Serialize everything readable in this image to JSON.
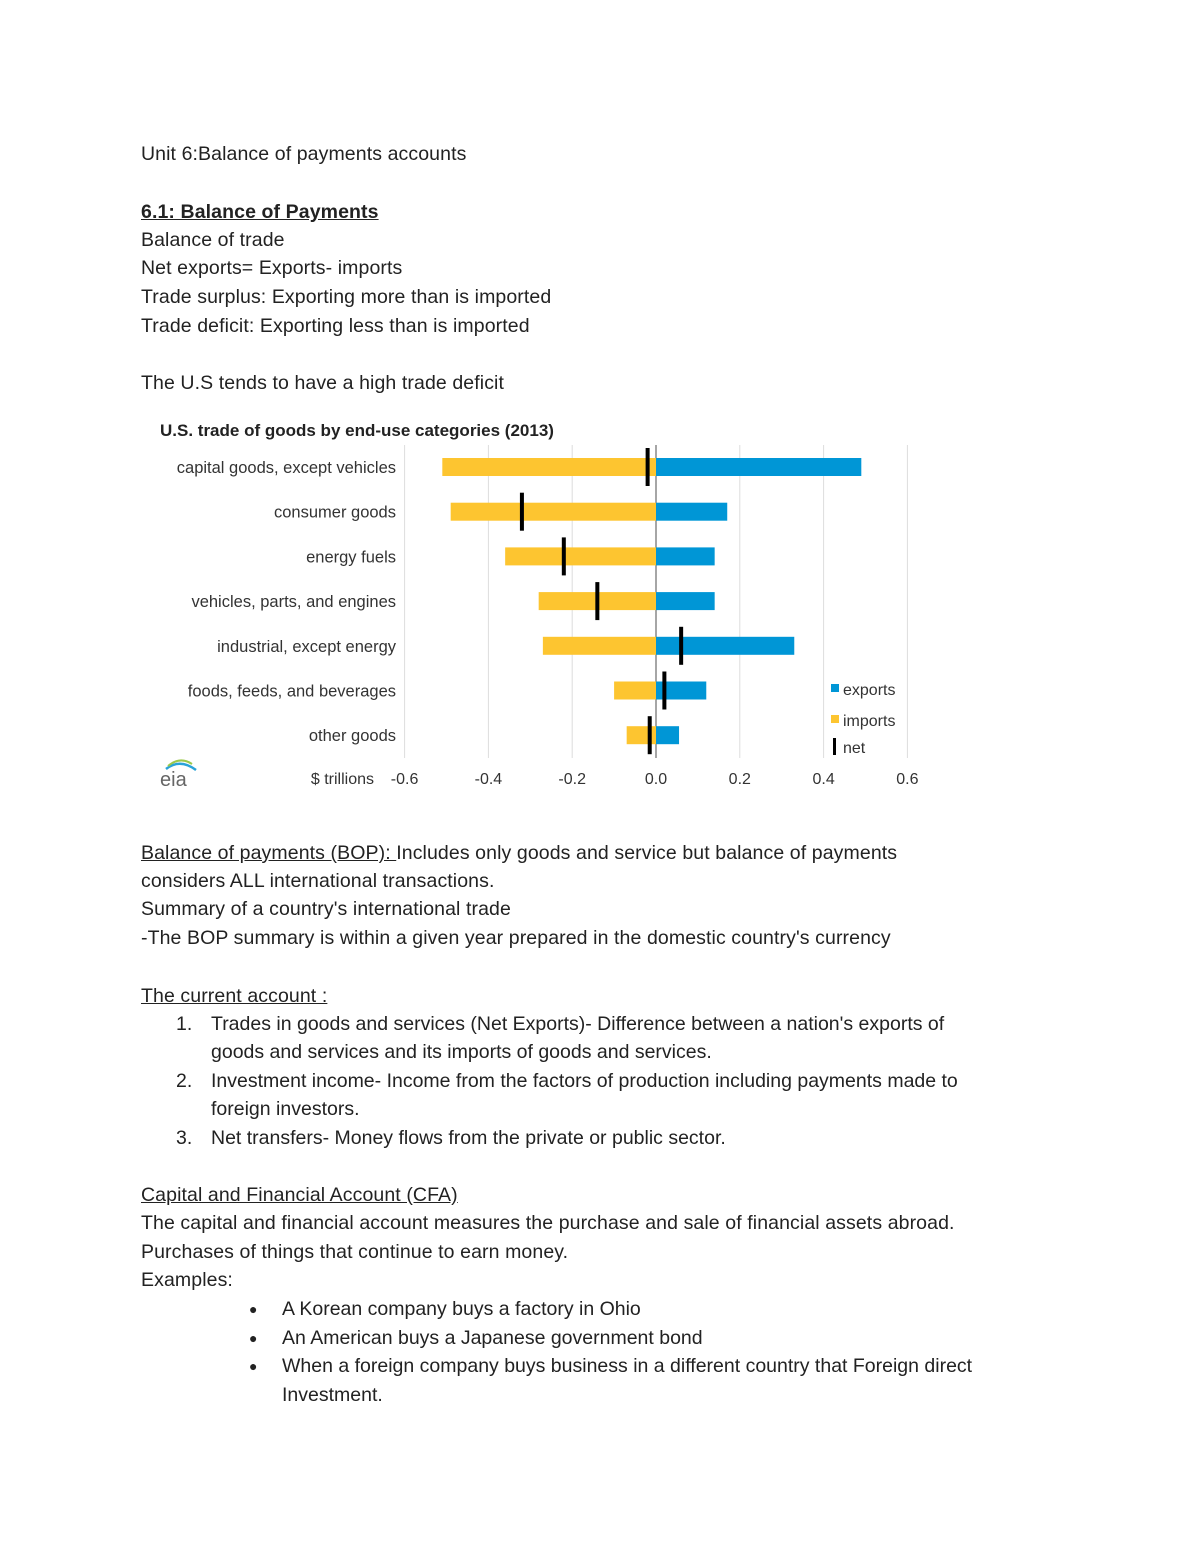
{
  "heading": "Unit 6:Balance of payments accounts",
  "section1": {
    "title": "6.1: Balance of Payments",
    "lines": [
      "Balance of trade",
      "Net exports= Exports- imports",
      "Trade surplus: Exporting more than is imported",
      "Trade deficit: Exporting less than is imported"
    ],
    "note": "The U.S tends to have a high trade deficit"
  },
  "chart_data": {
    "type": "bar",
    "orientation": "horizontal",
    "title": "U.S. trade of goods by end-use categories (2013)",
    "xlabel": "$ trillions",
    "xlim": [
      -0.6,
      0.6
    ],
    "xticks": [
      "-0.6",
      "-0.4",
      "-0.2",
      "0.0",
      "0.2",
      "0.4",
      "0.6"
    ],
    "grid": true,
    "legend_position": "bottom-right",
    "logo": "eia",
    "categories": [
      "capital goods, except vehicles",
      "consumer goods",
      "energy fuels",
      "vehicles, parts, and engines",
      "industrial, except energy",
      "foods, feeds, and beverages",
      "other goods"
    ],
    "series": [
      {
        "name": "exports",
        "color": "#0096d6",
        "values": [
          0.49,
          0.17,
          0.14,
          0.14,
          0.33,
          0.12,
          0.055
        ]
      },
      {
        "name": "imports",
        "color": "#fdc530",
        "values": [
          -0.51,
          -0.49,
          -0.36,
          -0.28,
          -0.27,
          -0.1,
          -0.07
        ]
      },
      {
        "name": "net",
        "color": "#000000",
        "values": [
          -0.02,
          -0.32,
          -0.22,
          -0.14,
          0.06,
          0.02,
          -0.015
        ]
      }
    ]
  },
  "bop": {
    "title": "Balance of payments (BOP): ",
    "line1_rest": "Includes only goods and service but balance of payments",
    "lines": [
      "considers ALL international transactions.",
      "Summary of a country's international trade",
      "-The BOP summary is within a given year prepared in the domestic country's currency"
    ]
  },
  "current": {
    "title": "The current account :",
    "items": [
      {
        "num": "1.",
        "lines": [
          "Trades in goods and services (Net Exports)- Difference between a nation's exports of",
          "goods and services and its imports of goods and services."
        ]
      },
      {
        "num": "2.",
        "lines": [
          "Investment income- Income from the factors of production including payments made to",
          "foreign investors."
        ]
      },
      {
        "num": "3.",
        "lines": [
          "Net transfers- Money flows from the private or public sector."
        ]
      }
    ]
  },
  "cfa": {
    "title": "Capital and Financial Account (CFA)",
    "lines": [
      "The capital and financial account measures the purchase and sale of financial assets abroad.",
      "Purchases of things that continue to earn money.",
      "Examples:"
    ],
    "bullets": [
      [
        "A Korean company buys a factory in Ohio"
      ],
      [
        "An American buys a Japanese government bond"
      ],
      [
        "When a foreign company buys business in a different country that Foreign direct",
        "Investment."
      ]
    ]
  }
}
